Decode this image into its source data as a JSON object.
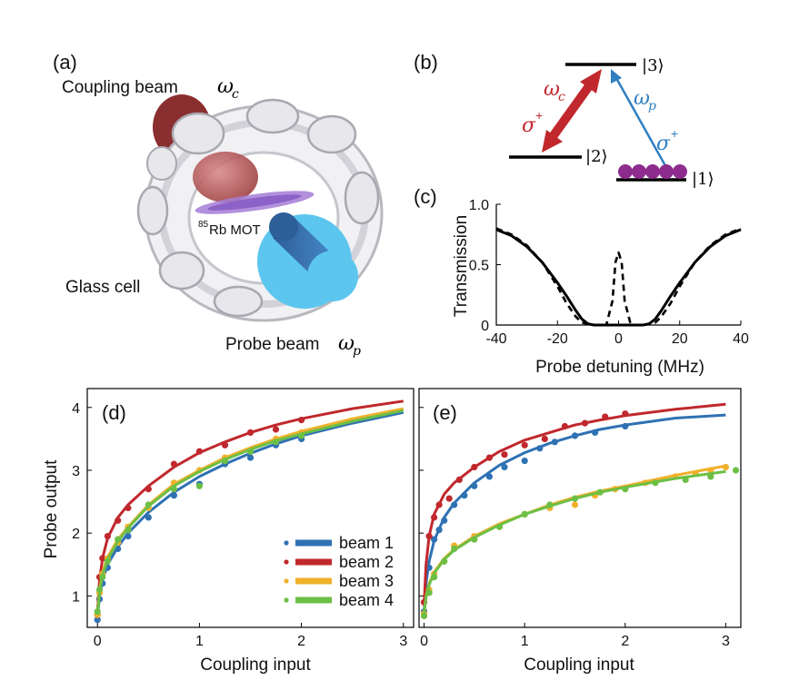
{
  "panel_a": {
    "label": "(a)",
    "coupling_text": "Coupling beam",
    "coupling_symbol": "ω",
    "coupling_sub": "c",
    "mot_sup": "85",
    "mot_text": "Rb MOT",
    "glass_cell": "Glass cell",
    "probe_text": "Probe beam",
    "probe_symbol": "ω",
    "probe_sub": "p"
  },
  "panel_b": {
    "label": "(b)",
    "level3": "|3⟩",
    "level2": "|2⟩",
    "level1": "|1⟩",
    "omega_c": "ω",
    "omega_c_sub": "c",
    "omega_p": "ω",
    "omega_p_sub": "p",
    "sigma_c": "σ",
    "sigma_c_sup": "+",
    "sigma_p": "σ",
    "sigma_p_sup": "+",
    "colors": {
      "coupling": "#c0282d",
      "probe": "#2f7fc1",
      "atoms": "#8e2c8e"
    }
  },
  "chart_data": [
    {
      "id": "c",
      "panel_label": "(c)",
      "type": "line",
      "title": "",
      "xlabel": "Probe detuning (MHz)",
      "ylabel": "Transmission",
      "xlim": [
        -40,
        40
      ],
      "ylim": [
        0,
        1
      ],
      "xticks": [
        -40,
        -20,
        0,
        20,
        40
      ],
      "xtick_labels": [
        "-40",
        "-20",
        "0",
        "20",
        "40"
      ],
      "yticks": [
        0,
        0.5,
        1
      ],
      "ytick_labels": [
        "0",
        "0.5",
        "1.0"
      ],
      "series": [
        {
          "name": "solid",
          "style": "solid",
          "x": [
            -40,
            -35,
            -30,
            -25,
            -20,
            -17,
            -14,
            -12,
            -10,
            -8,
            0,
            8,
            10,
            12,
            14,
            17,
            20,
            25,
            30,
            35,
            40
          ],
          "y": [
            0.79,
            0.74,
            0.65,
            0.52,
            0.35,
            0.24,
            0.12,
            0.05,
            0.01,
            0,
            0,
            0,
            0.01,
            0.05,
            0.12,
            0.24,
            0.35,
            0.52,
            0.65,
            0.74,
            0.79
          ]
        },
        {
          "name": "dashed",
          "style": "dashed",
          "x": [
            -40,
            -35,
            -30,
            -25,
            -20,
            -17,
            -14,
            -12,
            -10,
            -8,
            -4,
            -2,
            -1,
            0,
            1,
            2,
            4,
            8,
            10,
            12,
            14,
            17,
            20,
            25,
            30,
            35,
            40
          ],
          "y": [
            0.8,
            0.75,
            0.66,
            0.52,
            0.32,
            0.18,
            0.07,
            0.02,
            0.01,
            0,
            0,
            0.2,
            0.52,
            0.6,
            0.52,
            0.2,
            0,
            0,
            0.01,
            0.02,
            0.07,
            0.18,
            0.32,
            0.52,
            0.66,
            0.75,
            0.8
          ]
        }
      ]
    },
    {
      "id": "d",
      "panel_label": "(d)",
      "type": "scatter",
      "title": "",
      "xlabel": "Coupling input",
      "ylabel": "Probe output",
      "xlim": [
        -0.1,
        3.1
      ],
      "ylim": [
        0.5,
        4.3
      ],
      "xticks": [
        0,
        1,
        2,
        3
      ],
      "xtick_labels": [
        "0",
        "1",
        "2",
        "3"
      ],
      "yticks": [
        1,
        2,
        3,
        4
      ],
      "ytick_labels": [
        "1",
        "2",
        "3",
        "4"
      ],
      "legend": {
        "placement": "bottom-right",
        "entries": [
          "beam 1",
          "beam 2",
          "beam 3",
          "beam 4"
        ],
        "colors": [
          "#2f72b3",
          "#c0282d",
          "#f0b12b",
          "#6cbf45"
        ]
      },
      "series": [
        {
          "name": "beam 1",
          "color": "#2f72b3",
          "fit_x": [
            0,
            0.02,
            0.05,
            0.1,
            0.2,
            0.3,
            0.5,
            0.75,
            1,
            1.25,
            1.5,
            1.75,
            2,
            2.5,
            3
          ],
          "fit_y": [
            0.65,
            1.0,
            1.25,
            1.5,
            1.78,
            2.0,
            2.33,
            2.65,
            2.9,
            3.1,
            3.27,
            3.42,
            3.55,
            3.75,
            3.92
          ],
          "x": [
            0,
            0.02,
            0.05,
            0.1,
            0.2,
            0.3,
            0.5,
            0.75,
            1,
            1.25,
            1.5,
            1.75,
            2
          ],
          "y": [
            0.62,
            0.95,
            1.2,
            1.45,
            1.75,
            1.95,
            2.25,
            2.6,
            2.78,
            3.1,
            3.2,
            3.4,
            3.5
          ]
        },
        {
          "name": "beam 2",
          "color": "#c0282d",
          "fit_x": [
            0,
            0.02,
            0.05,
            0.1,
            0.2,
            0.3,
            0.5,
            0.75,
            1,
            1.25,
            1.5,
            1.75,
            2,
            2.5,
            3
          ],
          "fit_y": [
            0.75,
            1.25,
            1.6,
            1.92,
            2.25,
            2.45,
            2.75,
            3.05,
            3.28,
            3.45,
            3.6,
            3.72,
            3.82,
            3.98,
            4.1
          ],
          "x": [
            0,
            0.02,
            0.05,
            0.1,
            0.2,
            0.3,
            0.5,
            0.75,
            1,
            1.25,
            1.5,
            1.75,
            2
          ],
          "y": [
            0.7,
            1.3,
            1.6,
            1.95,
            2.2,
            2.4,
            2.7,
            3.1,
            3.3,
            3.4,
            3.6,
            3.65,
            3.8
          ]
        },
        {
          "name": "beam 3",
          "color": "#f0b12b",
          "fit_x": [
            0,
            0.02,
            0.05,
            0.1,
            0.2,
            0.3,
            0.5,
            0.75,
            1,
            1.25,
            1.5,
            1.75,
            2,
            2.5,
            3
          ],
          "fit_y": [
            0.72,
            1.1,
            1.38,
            1.62,
            1.9,
            2.1,
            2.45,
            2.78,
            3.0,
            3.2,
            3.36,
            3.5,
            3.62,
            3.82,
            3.98
          ],
          "x": [
            0,
            0.02,
            0.05,
            0.1,
            0.2,
            0.3,
            0.5,
            0.75,
            1,
            1.25,
            1.5,
            1.75,
            2
          ],
          "y": [
            0.7,
            1.05,
            1.35,
            1.6,
            1.85,
            2.1,
            2.4,
            2.8,
            3.0,
            3.2,
            3.3,
            3.5,
            3.6
          ]
        },
        {
          "name": "beam 4",
          "color": "#6cbf45",
          "fit_x": [
            0,
            0.02,
            0.05,
            0.1,
            0.2,
            0.3,
            0.5,
            0.75,
            1,
            1.25,
            1.5,
            1.75,
            2,
            2.5,
            3
          ],
          "fit_y": [
            0.7,
            1.05,
            1.33,
            1.58,
            1.87,
            2.08,
            2.43,
            2.75,
            2.98,
            3.17,
            3.33,
            3.47,
            3.58,
            3.78,
            3.95
          ],
          "x": [
            0,
            0.02,
            0.05,
            0.1,
            0.2,
            0.3,
            0.5,
            0.75,
            1,
            1.25,
            1.5,
            1.75,
            2
          ],
          "y": [
            0.75,
            1.1,
            1.3,
            1.55,
            1.9,
            2.05,
            2.45,
            2.7,
            2.75,
            3.15,
            3.3,
            3.45,
            3.55
          ]
        }
      ]
    },
    {
      "id": "e",
      "panel_label": "(e)",
      "type": "scatter",
      "title": "",
      "xlabel": "Coupling input",
      "ylabel": "",
      "xlim": [
        -0.05,
        3.15
      ],
      "ylim": [
        0.5,
        4.3
      ],
      "xticks": [
        0,
        1,
        2,
        3
      ],
      "xtick_labels": [
        "0",
        "1",
        "2",
        "3"
      ],
      "yticks": [
        1,
        2,
        3,
        4
      ],
      "ytick_labels": [],
      "series": [
        {
          "name": "beam 1",
          "color": "#2f72b3",
          "fit_x": [
            0,
            0.02,
            0.05,
            0.1,
            0.2,
            0.3,
            0.5,
            0.75,
            1,
            1.25,
            1.5,
            1.75,
            2,
            2.5,
            3
          ],
          "fit_y": [
            0.75,
            1.2,
            1.55,
            1.88,
            2.25,
            2.48,
            2.8,
            3.08,
            3.28,
            3.43,
            3.55,
            3.65,
            3.72,
            3.83,
            3.88
          ],
          "x": [
            0,
            0.05,
            0.1,
            0.15,
            0.2,
            0.3,
            0.4,
            0.5,
            0.65,
            0.8,
            1,
            1.15,
            1.3,
            1.5,
            1.7,
            2
          ],
          "y": [
            0.75,
            1.45,
            1.9,
            2.05,
            2.2,
            2.45,
            2.6,
            2.75,
            2.9,
            3.05,
            3.15,
            3.35,
            3.45,
            3.55,
            3.6,
            3.7
          ]
        },
        {
          "name": "beam 2",
          "color": "#c0282d",
          "fit_x": [
            0,
            0.02,
            0.05,
            0.1,
            0.2,
            0.3,
            0.5,
            0.75,
            1,
            1.25,
            1.5,
            1.75,
            2,
            2.5,
            3
          ],
          "fit_y": [
            0.85,
            1.5,
            1.95,
            2.3,
            2.62,
            2.8,
            3.05,
            3.3,
            3.48,
            3.6,
            3.72,
            3.8,
            3.87,
            3.97,
            4.05
          ],
          "x": [
            0,
            0.05,
            0.1,
            0.15,
            0.25,
            0.35,
            0.5,
            0.65,
            0.8,
            1,
            1.2,
            1.4,
            1.6,
            1.8,
            2
          ],
          "y": [
            0.9,
            1.95,
            2.25,
            2.45,
            2.55,
            2.85,
            3.05,
            3.2,
            3.25,
            3.4,
            3.5,
            3.7,
            3.75,
            3.85,
            3.9
          ]
        },
        {
          "name": "beam 3",
          "color": "#f0b12b",
          "fit_x": [
            0,
            0.02,
            0.05,
            0.1,
            0.2,
            0.3,
            0.5,
            0.75,
            1,
            1.25,
            1.5,
            1.75,
            2,
            2.5,
            3
          ],
          "fit_y": [
            0.72,
            1.0,
            1.2,
            1.38,
            1.6,
            1.74,
            1.95,
            2.15,
            2.3,
            2.45,
            2.57,
            2.67,
            2.75,
            2.92,
            3.07
          ],
          "x": [
            0,
            0.05,
            0.1,
            0.2,
            0.3,
            0.5,
            0.75,
            1,
            1.25,
            1.5,
            1.7,
            1.9,
            2.2,
            2.5,
            2.7,
            2.85,
            3
          ],
          "y": [
            0.72,
            1.1,
            1.35,
            1.55,
            1.8,
            1.95,
            2.1,
            2.3,
            2.4,
            2.45,
            2.6,
            2.7,
            2.8,
            2.9,
            2.95,
            3.0,
            3.05
          ]
        },
        {
          "name": "beam 4",
          "color": "#6cbf45",
          "fit_x": [
            0,
            0.02,
            0.05,
            0.1,
            0.2,
            0.3,
            0.5,
            0.75,
            1,
            1.25,
            1.5,
            1.75,
            2,
            2.5,
            3
          ],
          "fit_y": [
            0.7,
            0.98,
            1.18,
            1.36,
            1.58,
            1.73,
            1.93,
            2.13,
            2.3,
            2.43,
            2.55,
            2.65,
            2.73,
            2.87,
            2.98
          ],
          "x": [
            0,
            0.05,
            0.1,
            0.2,
            0.3,
            0.5,
            0.75,
            1,
            1.25,
            1.5,
            1.75,
            2,
            2.3,
            2.6,
            2.85,
            3.1
          ],
          "y": [
            0.68,
            1.05,
            1.3,
            1.55,
            1.75,
            1.9,
            2.1,
            2.3,
            2.45,
            2.55,
            2.65,
            2.7,
            2.8,
            2.85,
            2.9,
            3.0
          ]
        }
      ]
    }
  ]
}
